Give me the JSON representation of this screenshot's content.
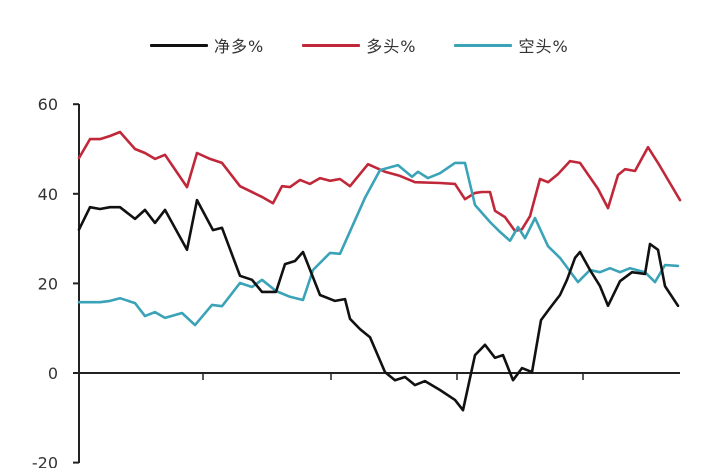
{
  "chart_data": {
    "type": "line",
    "title": "",
    "xlabel": "",
    "ylabel": "",
    "ylim": [
      -20,
      60
    ],
    "yticks": [
      60,
      40,
      20,
      0,
      -20
    ],
    "xticks_count": 4,
    "grid": false,
    "legend_position": "top",
    "colors": {
      "net": "#111111",
      "long": "#c0283a",
      "short": "#3aa3b8"
    },
    "series": [
      {
        "name": "净多%",
        "color": "#111111",
        "points": [
          [
            79,
            32
          ],
          [
            90,
            37
          ],
          [
            100,
            36.6
          ],
          [
            110,
            37
          ],
          [
            120,
            37
          ],
          [
            135,
            34.4
          ],
          [
            145,
            36.4
          ],
          [
            155,
            33.5
          ],
          [
            165,
            36.4
          ],
          [
            187,
            27.5
          ],
          [
            197,
            38.6
          ],
          [
            213,
            31.9
          ],
          [
            222,
            32.4
          ],
          [
            240,
            21.7
          ],
          [
            252,
            20.8
          ],
          [
            262,
            18.1
          ],
          [
            276,
            18.1
          ],
          [
            285,
            24.3
          ],
          [
            295,
            25
          ],
          [
            303,
            27
          ],
          [
            320,
            17.4
          ],
          [
            335,
            16.1
          ],
          [
            345,
            16.5
          ],
          [
            350,
            12.1
          ],
          [
            360,
            9.8
          ],
          [
            370,
            8
          ],
          [
            385,
            0.2
          ],
          [
            395,
            -1.6
          ],
          [
            405,
            -0.9
          ],
          [
            415,
            -2.7
          ],
          [
            425,
            -1.8
          ],
          [
            440,
            -3.8
          ],
          [
            455,
            -6
          ],
          [
            463,
            -8.3
          ],
          [
            475,
            4
          ],
          [
            485,
            6.3
          ],
          [
            495,
            3.4
          ],
          [
            503,
            4
          ],
          [
            513,
            -1.6
          ],
          [
            522,
            1.1
          ],
          [
            532,
            0.2
          ],
          [
            541,
            11.8
          ],
          [
            550,
            14.5
          ],
          [
            560,
            17.4
          ],
          [
            567,
            20.8
          ],
          [
            575,
            25.7
          ],
          [
            580,
            27
          ],
          [
            590,
            23
          ],
          [
            600,
            19.4
          ],
          [
            608,
            15
          ],
          [
            620,
            20.5
          ],
          [
            632,
            22.5
          ],
          [
            645,
            22.1
          ],
          [
            650,
            28.8
          ],
          [
            658,
            27.5
          ],
          [
            665,
            19.4
          ],
          [
            678,
            15
          ]
        ]
      },
      {
        "name": "多头%",
        "color": "#c0283a",
        "points": [
          [
            79,
            48
          ],
          [
            90,
            52.2
          ],
          [
            100,
            52.2
          ],
          [
            110,
            52.9
          ],
          [
            120,
            53.8
          ],
          [
            135,
            50
          ],
          [
            145,
            49.1
          ],
          [
            155,
            47.8
          ],
          [
            165,
            48.7
          ],
          [
            187,
            41.5
          ],
          [
            197,
            49.1
          ],
          [
            210,
            47.8
          ],
          [
            222,
            46.9
          ],
          [
            240,
            41.7
          ],
          [
            262,
            39.3
          ],
          [
            273,
            37.9
          ],
          [
            282,
            41.7
          ],
          [
            290,
            41.5
          ],
          [
            300,
            43.1
          ],
          [
            310,
            42.2
          ],
          [
            320,
            43.5
          ],
          [
            330,
            42.9
          ],
          [
            340,
            43.3
          ],
          [
            350,
            41.7
          ],
          [
            368,
            46.6
          ],
          [
            385,
            44.9
          ],
          [
            400,
            44
          ],
          [
            415,
            42.6
          ],
          [
            440,
            42.4
          ],
          [
            455,
            42.2
          ],
          [
            465,
            38.8
          ],
          [
            475,
            40.2
          ],
          [
            482,
            40.4
          ],
          [
            490,
            40.4
          ],
          [
            495,
            36.2
          ],
          [
            505,
            34.8
          ],
          [
            515,
            31.7
          ],
          [
            522,
            32.1
          ],
          [
            530,
            35
          ],
          [
            540,
            43.3
          ],
          [
            548,
            42.6
          ],
          [
            558,
            44.4
          ],
          [
            570,
            47.3
          ],
          [
            580,
            46.9
          ],
          [
            598,
            41.1
          ],
          [
            608,
            36.8
          ],
          [
            618,
            44.2
          ],
          [
            625,
            45.5
          ],
          [
            635,
            45.1
          ],
          [
            648,
            50.4
          ],
          [
            658,
            46.9
          ],
          [
            680,
            38.6
          ]
        ]
      },
      {
        "name": "空头%",
        "color": "#3aa3b8",
        "points": [
          [
            79,
            15.8
          ],
          [
            100,
            15.8
          ],
          [
            110,
            16.1
          ],
          [
            120,
            16.7
          ],
          [
            135,
            15.6
          ],
          [
            145,
            12.7
          ],
          [
            155,
            13.6
          ],
          [
            165,
            12.3
          ],
          [
            182,
            13.4
          ],
          [
            195,
            10.7
          ],
          [
            212,
            15.2
          ],
          [
            222,
            14.9
          ],
          [
            240,
            20.1
          ],
          [
            252,
            19.2
          ],
          [
            262,
            20.8
          ],
          [
            276,
            18.3
          ],
          [
            290,
            17
          ],
          [
            303,
            16.3
          ],
          [
            313,
            23
          ],
          [
            330,
            26.8
          ],
          [
            340,
            26.6
          ],
          [
            365,
            39.1
          ],
          [
            380,
            45.3
          ],
          [
            398,
            46.4
          ],
          [
            412,
            43.8
          ],
          [
            418,
            44.9
          ],
          [
            428,
            43.5
          ],
          [
            440,
            44.6
          ],
          [
            455,
            46.9
          ],
          [
            465,
            46.9
          ],
          [
            475,
            37.5
          ],
          [
            490,
            33.7
          ],
          [
            500,
            31.5
          ],
          [
            510,
            29.5
          ],
          [
            518,
            32.6
          ],
          [
            525,
            30.1
          ],
          [
            535,
            34.6
          ],
          [
            548,
            28.3
          ],
          [
            560,
            25.7
          ],
          [
            578,
            20.3
          ],
          [
            590,
            23
          ],
          [
            600,
            22.5
          ],
          [
            610,
            23.4
          ],
          [
            620,
            22.5
          ],
          [
            630,
            23.4
          ],
          [
            645,
            22.5
          ],
          [
            655,
            20.3
          ],
          [
            665,
            24.1
          ],
          [
            678,
            23.9
          ]
        ]
      }
    ]
  },
  "legend": {
    "items": [
      {
        "label": "净多%",
        "color": "#111111"
      },
      {
        "label": "多头%",
        "color": "#c0283a"
      },
      {
        "label": "空头%",
        "color": "#3aa3b8"
      }
    ]
  },
  "axis": {
    "y_labels": [
      "60",
      "40",
      "20",
      "0",
      "-20"
    ]
  }
}
